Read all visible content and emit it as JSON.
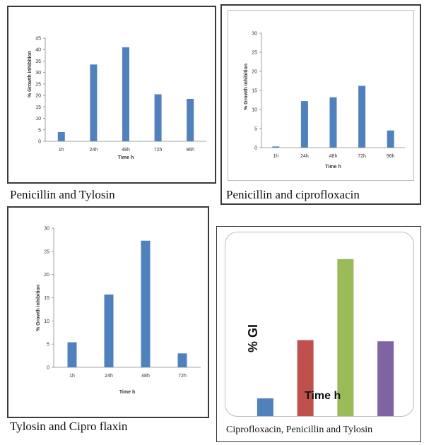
{
  "colors": {
    "bar_blue": "#4f81bd",
    "bar_red": "#c0504d",
    "bar_green": "#9bbb59",
    "bar_purple": "#8064a2"
  },
  "chart_data": [
    {
      "type": "bar",
      "caption": "Penicillin and Tylosin",
      "categories": [
        "1h",
        "24h",
        "48h",
        "72h",
        "96h"
      ],
      "values": [
        4,
        33.5,
        41,
        20.5,
        18.5
      ],
      "xlabel": "Time h",
      "ylabel": "% Growth inhibition",
      "ylim": [
        0,
        45
      ],
      "yticks": [
        "0",
        "5",
        "10",
        "15",
        "20",
        "25",
        "30",
        "35",
        "40",
        "45"
      ],
      "grid": false
    },
    {
      "type": "bar",
      "caption": "Penicillin and ciprofloxacin",
      "categories": [
        "1h",
        "24h",
        "48h",
        "72h",
        "96h"
      ],
      "values": [
        0.3,
        12.2,
        13.2,
        16.2,
        4.5
      ],
      "xlabel": "Time h",
      "ylabel": "% Growth inhibition",
      "ylim": [
        0,
        30
      ],
      "yticks": [
        "0",
        "5",
        "10",
        "15",
        "20",
        "25",
        "30"
      ],
      "grid": false
    },
    {
      "type": "bar",
      "caption": "Tylosin and Cipro flaxin",
      "categories": [
        "1h",
        "24h",
        "48h",
        "72h"
      ],
      "values": [
        5.4,
        15.7,
        27.3,
        3
      ],
      "xlabel": "Time h",
      "ylabel": "% Growth inhibition",
      "ylim": [
        0,
        30
      ],
      "yticks": [
        "0",
        "5",
        "10",
        "15",
        "20",
        "25",
        "30"
      ],
      "grid": false
    },
    {
      "type": "bar",
      "caption": "Ciprofloxacin, Penicillin and Tylosin",
      "categories": [
        "",
        "",
        "",
        ""
      ],
      "values": [
        3.3,
        13,
        26.5,
        12.8
      ],
      "colors": [
        "#4f81bd",
        "#c0504d",
        "#9bbb59",
        "#8064a2"
      ],
      "xlabel": "Time h",
      "ylabel": "% GI",
      "ylim": [
        0,
        30
      ],
      "grid": false
    }
  ]
}
